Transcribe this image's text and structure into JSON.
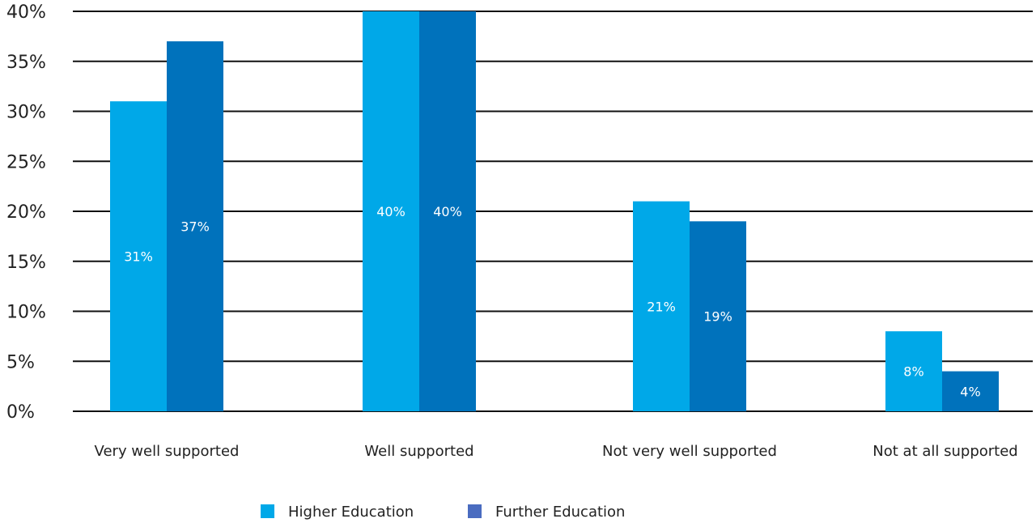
{
  "chart_data": {
    "type": "bar",
    "categories": [
      "Very well supported",
      "Well supported",
      "Not very well supported",
      "Not at all supported"
    ],
    "series": [
      {
        "name": "Higher Education",
        "values": [
          31,
          40,
          21,
          8
        ],
        "labels": [
          "31%",
          "40%",
          "21%",
          "8%"
        ],
        "color": "#00a8e8"
      },
      {
        "name": "Further Education",
        "values": [
          37,
          40,
          19,
          4
        ],
        "labels": [
          "37%",
          "40%",
          "19%",
          "4%"
        ],
        "color": "#0072bc"
      }
    ],
    "legend_swatch_colors": [
      "#00a8e8",
      "#4a6cc0"
    ],
    "ylim": [
      0,
      40
    ],
    "yticks": [
      "0%",
      "5%",
      "10%",
      "15%",
      "20%",
      "25%",
      "30%",
      "35%",
      "40%"
    ],
    "title": "",
    "xlabel": "",
    "ylabel": "",
    "grid": true,
    "legend_position": "bottom"
  }
}
